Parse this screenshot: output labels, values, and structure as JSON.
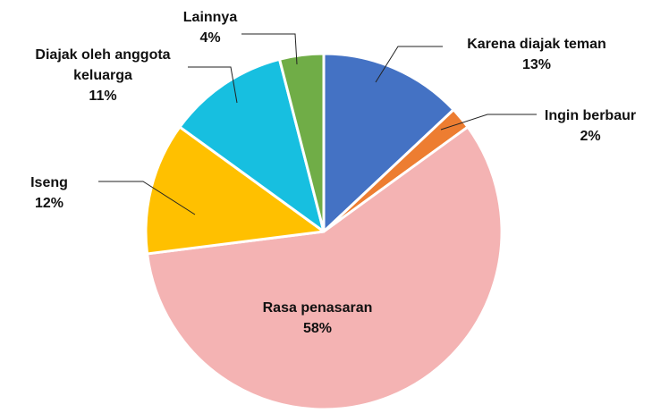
{
  "chart_data": {
    "type": "pie",
    "categories": [
      "Karena diajak teman",
      "Ingin berbaur",
      "Rasa penasaran",
      "Iseng",
      "Diajak oleh anggota keluarga",
      "Lainnya"
    ],
    "values": [
      13,
      2,
      58,
      12,
      11,
      4
    ],
    "value_labels": [
      "13%",
      "2%",
      "58%",
      "12%",
      "11%",
      "4%"
    ],
    "colors": [
      "#4472c4",
      "#ed7d31",
      "#f4b3b3",
      "#ffc000",
      "#17bfe0",
      "#70ad47"
    ]
  }
}
